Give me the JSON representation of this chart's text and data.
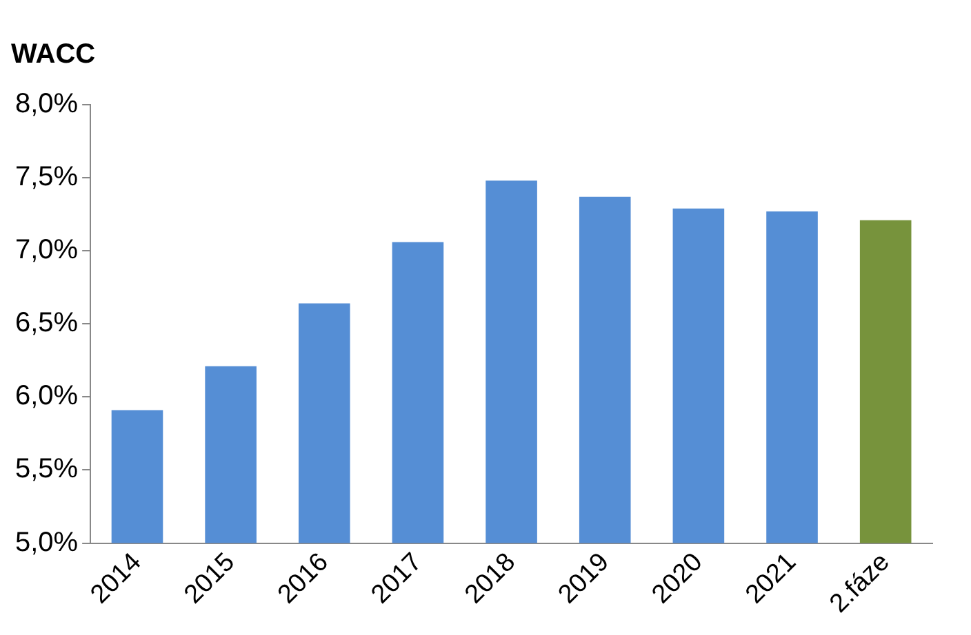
{
  "chart_data": {
    "type": "bar",
    "title": "WACC",
    "categories": [
      "2014",
      "2015",
      "2016",
      "2017",
      "2018",
      "2019",
      "2020",
      "2021",
      "2.fáze"
    ],
    "values": [
      5.91,
      6.21,
      6.64,
      7.06,
      7.48,
      7.37,
      7.29,
      7.27,
      7.21
    ],
    "colors": [
      "#558ed5",
      "#558ed5",
      "#558ed5",
      "#558ed5",
      "#558ed5",
      "#558ed5",
      "#558ed5",
      "#558ed5",
      "#77933c"
    ],
    "ylim": [
      5,
      8
    ],
    "yticks": [
      {
        "value": 5,
        "label": "5,0%"
      },
      {
        "value": 5.5,
        "label": "5,5%"
      },
      {
        "value": 6,
        "label": "6,0%"
      },
      {
        "value": 6.5,
        "label": "6,5%"
      },
      {
        "value": 7,
        "label": "7,0%"
      },
      {
        "value": 7.5,
        "label": "7,5%"
      },
      {
        "value": 8,
        "label": "8,0%"
      }
    ],
    "grid": false,
    "legend": false
  }
}
